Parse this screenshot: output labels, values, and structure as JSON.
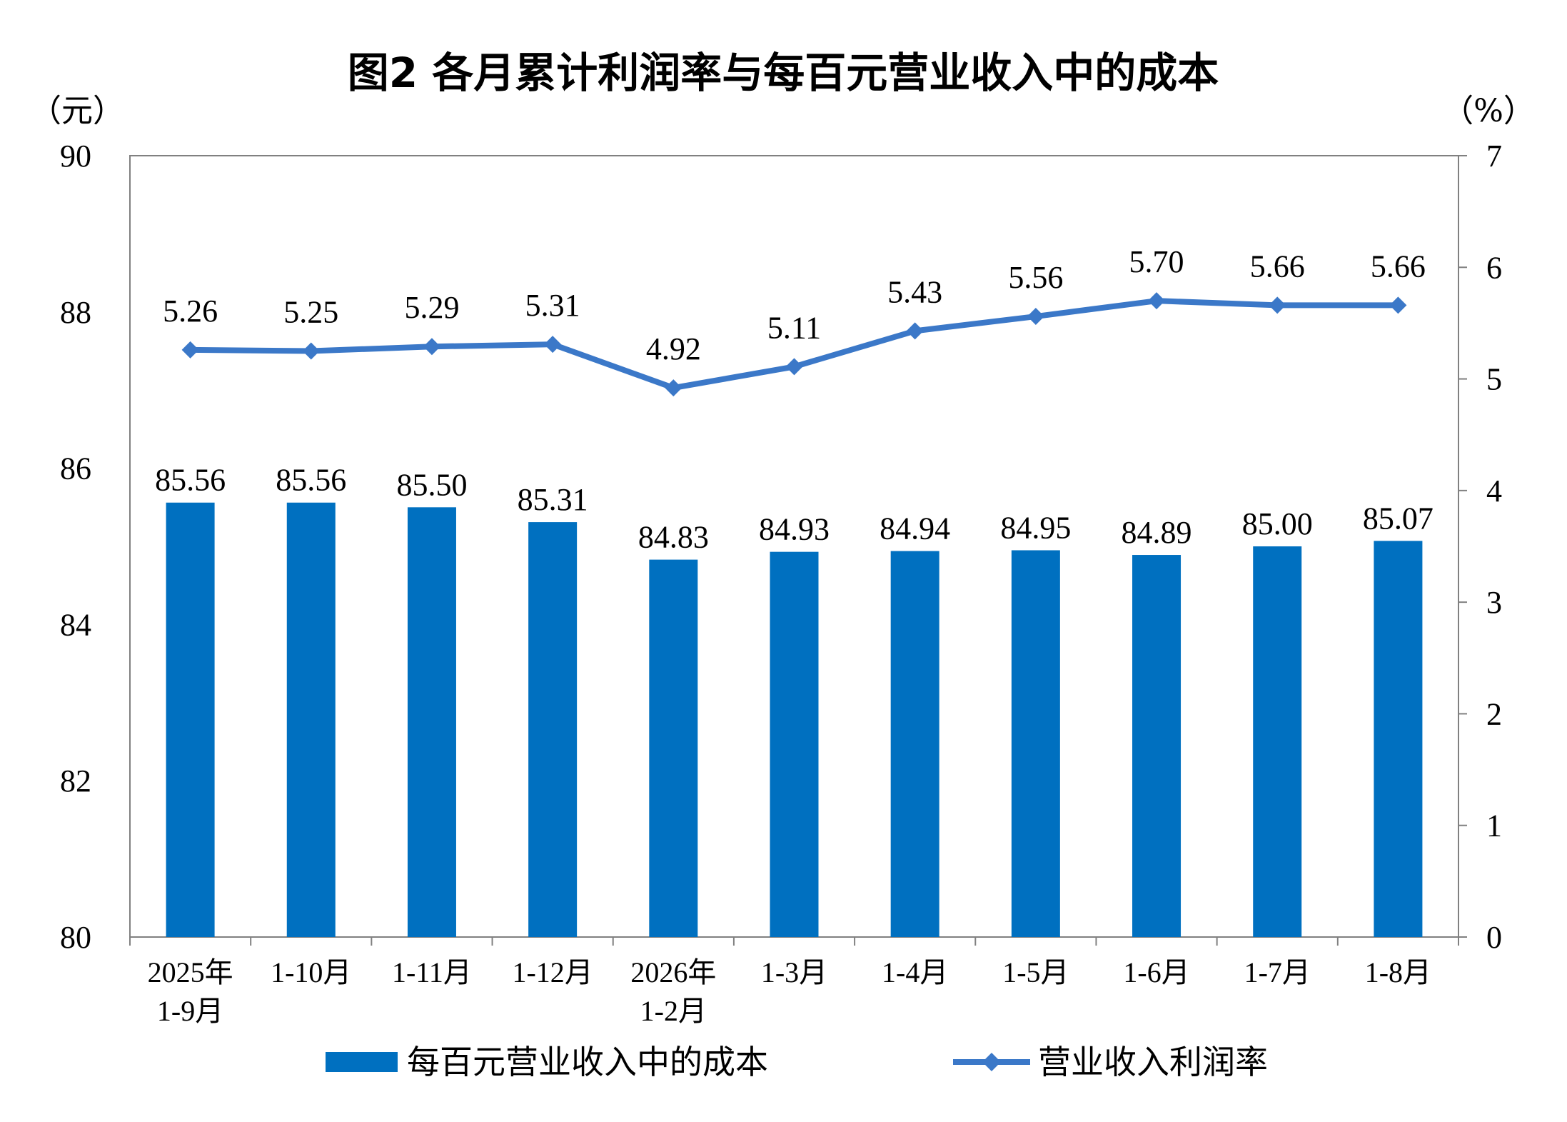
{
  "chart_data": {
    "type": "bar+line",
    "title": "图2  各月累计利润率与每百元营业收入中的成本",
    "left_unit": "（元）",
    "right_unit": "（%）",
    "categories": [
      [
        "2025年",
        "1-9月"
      ],
      [
        "1-10月"
      ],
      [
        "1-11月"
      ],
      [
        "1-12月"
      ],
      [
        "2026年",
        "1-2月"
      ],
      [
        "1-3月"
      ],
      [
        "1-4月"
      ],
      [
        "1-5月"
      ],
      [
        "1-6月"
      ],
      [
        "1-7月"
      ],
      [
        "1-8月"
      ]
    ],
    "series": [
      {
        "name": "每百元营业收入中的成本",
        "type": "bar",
        "axis": "left",
        "color": "#0070C0",
        "values": [
          85.56,
          85.56,
          85.5,
          85.31,
          84.83,
          84.93,
          84.94,
          84.95,
          84.89,
          85.0,
          85.07
        ],
        "labels": [
          "85.56",
          "85.56",
          "85.50",
          "85.31",
          "84.83",
          "84.93",
          "84.94",
          "84.95",
          "84.89",
          "85.00",
          "85.07"
        ]
      },
      {
        "name": "营业收入利润率",
        "type": "line",
        "axis": "right",
        "color": "#3B78C8",
        "marker": "diamond",
        "values": [
          5.26,
          5.25,
          5.29,
          5.31,
          4.92,
          5.11,
          5.43,
          5.56,
          5.7,
          5.66,
          5.66
        ],
        "labels": [
          "5.26",
          "5.25",
          "5.29",
          "5.31",
          "4.92",
          "5.11",
          "5.43",
          "5.56",
          "5.70",
          "5.66",
          "5.66"
        ]
      }
    ],
    "left_axis": {
      "min": 80,
      "max": 90,
      "ticks": [
        "80",
        "82",
        "84",
        "86",
        "88",
        "90"
      ]
    },
    "right_axis": {
      "min": 0,
      "max": 7,
      "ticks": [
        "0",
        "1",
        "2",
        "3",
        "4",
        "5",
        "6",
        "7"
      ]
    },
    "grid": false,
    "legend_position": "bottom"
  }
}
